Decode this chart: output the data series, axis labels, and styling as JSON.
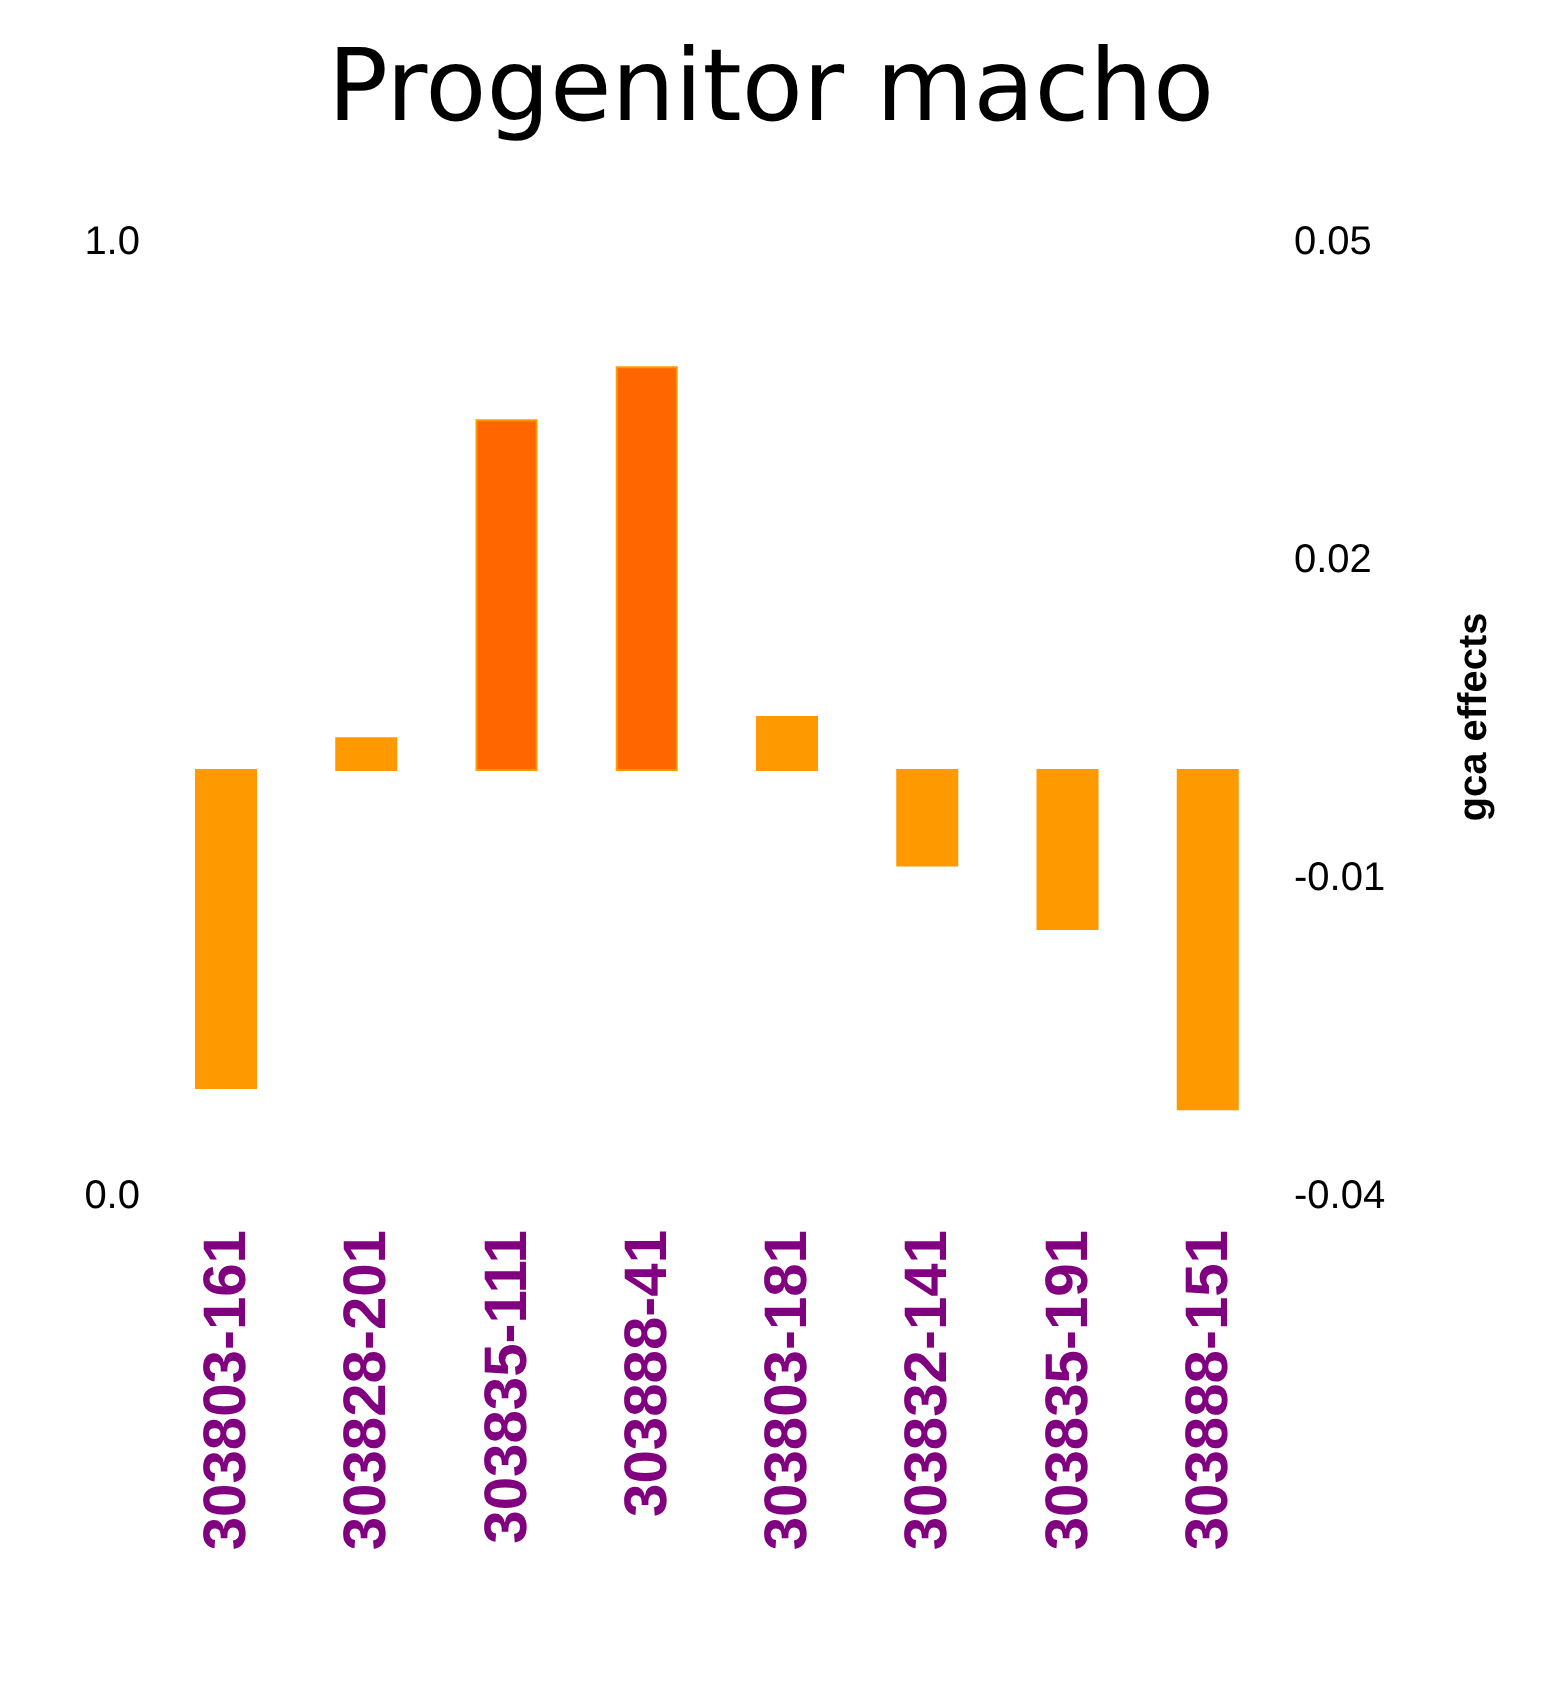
{
  "chart_data": {
    "type": "bar",
    "title": "Progenitor macho",
    "y2label": "gca effects",
    "categories": [
      "303803-161",
      "303828-201",
      "303835-111",
      "303888-41",
      "303803-181",
      "303832-141",
      "303835-191",
      "303888-151"
    ],
    "series": [
      {
        "axis": "y2",
        "values": [
          -0.03,
          0.003,
          0.033,
          0.038,
          0.005,
          -0.009,
          -0.015,
          -0.032
        ],
        "colors": [
          "#ff9900",
          "#ff9900",
          "#ff6600",
          "#ff6600",
          "#ff9900",
          "#ff9900",
          "#ff9900",
          "#ff9900"
        ]
      }
    ],
    "ylim": [
      0,
      1
    ],
    "yticks": [
      {
        "value": 0,
        "label": "0.0"
      },
      {
        "value": 1,
        "label": "1.0"
      }
    ],
    "y2lim": [
      -0.04,
      0.05
    ],
    "y2ticks": [
      {
        "value": -0.04,
        "label": "-0.04"
      },
      {
        "value": -0.01,
        "label": "-0.01"
      },
      {
        "value": 0.02,
        "label": "0.02"
      },
      {
        "value": 0.05,
        "label": "0.05"
      }
    ],
    "grid": false,
    "legend": false
  }
}
